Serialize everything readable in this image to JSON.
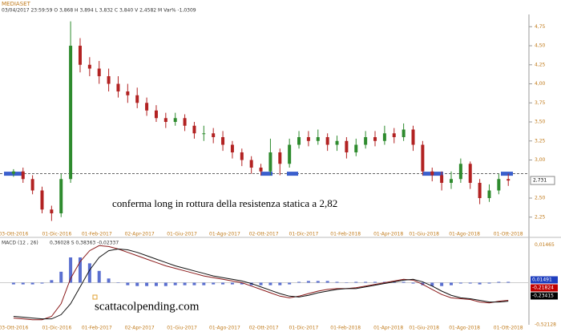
{
  "header": {
    "symbol": "MEDIASET",
    "readout": "03/04/2017  23:59:59  O 3,868  H 3,894  L 3,832  C 3,840  V 2,4582 M  Var% -1,0309",
    "watermark": "scattacolpending.com"
  },
  "chart_data": [
    {
      "type": "candlestick",
      "x": [
        0,
        2,
        4,
        6,
        8,
        10,
        12,
        14,
        16,
        18,
        20,
        22,
        24,
        26,
        28,
        30,
        32,
        34,
        36,
        38,
        40,
        42,
        44,
        46,
        48,
        50,
        52,
        54,
        56,
        58,
        60,
        62,
        64,
        66,
        68,
        70,
        72,
        74,
        76,
        78,
        80,
        82,
        84,
        86,
        88,
        90,
        92,
        94,
        96,
        98,
        100,
        102,
        104
      ],
      "open": [
        2.82,
        2.85,
        2.75,
        2.6,
        2.35,
        2.3,
        2.75,
        4.5,
        4.25,
        4.2,
        4.1,
        4.0,
        3.9,
        3.85,
        3.75,
        3.65,
        3.55,
        3.5,
        3.55,
        3.45,
        3.35,
        3.35,
        3.3,
        3.2,
        3.1,
        3.0,
        2.9,
        2.85,
        3.1,
        2.95,
        3.2,
        3.3,
        3.25,
        3.3,
        3.2,
        3.25,
        3.1,
        3.2,
        3.3,
        3.25,
        3.35,
        3.3,
        3.4,
        3.2,
        2.85,
        2.8,
        2.7,
        2.75,
        2.95,
        2.7,
        2.5,
        2.6,
        2.75
      ],
      "high": [
        2.88,
        2.9,
        2.8,
        2.65,
        2.4,
        2.82,
        4.82,
        4.6,
        4.35,
        4.3,
        4.2,
        4.1,
        4.0,
        3.95,
        3.82,
        3.72,
        3.62,
        3.62,
        3.6,
        3.5,
        3.45,
        3.42,
        3.38,
        3.25,
        3.15,
        3.05,
        2.95,
        3.28,
        3.15,
        3.28,
        3.38,
        3.38,
        3.4,
        3.35,
        3.32,
        3.3,
        3.28,
        3.38,
        3.38,
        3.45,
        3.42,
        3.48,
        3.45,
        3.25,
        2.9,
        2.85,
        2.85,
        3.02,
        2.98,
        2.75,
        2.68,
        2.82,
        2.82
      ],
      "low": [
        2.78,
        2.7,
        2.55,
        2.3,
        2.2,
        2.25,
        2.7,
        4.15,
        4.1,
        4.0,
        3.9,
        3.82,
        3.75,
        3.68,
        3.58,
        3.5,
        3.42,
        3.45,
        3.38,
        3.28,
        3.25,
        3.22,
        3.12,
        3.02,
        2.92,
        2.82,
        2.8,
        2.8,
        2.8,
        2.9,
        3.15,
        3.18,
        3.2,
        3.12,
        3.12,
        3.02,
        3.05,
        3.15,
        3.18,
        3.2,
        3.22,
        3.25,
        3.12,
        2.8,
        2.72,
        2.6,
        2.62,
        2.7,
        2.62,
        2.42,
        2.45,
        2.55,
        2.66
      ],
      "close": [
        2.85,
        2.75,
        2.6,
        2.35,
        2.3,
        2.75,
        4.5,
        4.25,
        4.2,
        4.1,
        4.0,
        3.9,
        3.85,
        3.75,
        3.65,
        3.55,
        3.5,
        3.55,
        3.45,
        3.35,
        3.35,
        3.3,
        3.2,
        3.1,
        3.0,
        2.9,
        2.85,
        3.1,
        2.95,
        3.2,
        3.3,
        3.25,
        3.3,
        3.2,
        3.25,
        3.1,
        3.2,
        3.3,
        3.25,
        3.35,
        3.3,
        3.4,
        3.2,
        2.85,
        2.8,
        2.7,
        2.75,
        2.95,
        2.7,
        2.5,
        2.6,
        2.75,
        2.73
      ],
      "up_color": "#2e8b2e",
      "down_color": "#b22222",
      "xlim": [
        -2,
        107.5
      ],
      "xticks": [
        {
          "value": 0,
          "label": "03-Ott-2016"
        },
        {
          "value": 9.1,
          "label": "01-Dic-2016"
        },
        {
          "value": 17.5,
          "label": "01-Feb-2017"
        },
        {
          "value": 26.5,
          "label": "02-Apr-2017"
        },
        {
          "value": 35.4,
          "label": "01-Giu-2017"
        },
        {
          "value": 44.4,
          "label": "01-Ago-2017"
        },
        {
          "value": 52.6,
          "label": "02-Ott-2017"
        },
        {
          "value": 61,
          "label": "01-Dic-2017"
        },
        {
          "value": 69.8,
          "label": "01-Feb-2018"
        },
        {
          "value": 78.8,
          "label": "01-Apr-2018"
        },
        {
          "value": 86.3,
          "label": "01-Giu-2018"
        },
        {
          "value": 94.8,
          "label": "01-Ago-2018"
        },
        {
          "value": 104,
          "label": "01-Ott-2018"
        }
      ],
      "ylim": [
        2.1,
        4.89
      ],
      "yticks": [
        {
          "value": 2.25,
          "label": "2,25"
        },
        {
          "value": 2.5,
          "label": "2,50"
        },
        {
          "value": 3,
          "label": "3,00"
        },
        {
          "value": 3.25,
          "label": "3,25"
        },
        {
          "value": 3.5,
          "label": "3,50"
        },
        {
          "value": 3.75,
          "label": "3,75"
        },
        {
          "value": 4,
          "label": "4,00"
        },
        {
          "value": 4.25,
          "label": "4,25"
        },
        {
          "value": 4.5,
          "label": "4,50"
        },
        {
          "value": 4.75,
          "label": "4,75"
        }
      ],
      "resistance": 2.82,
      "resistance_color": "#3a5fcd",
      "last_price": {
        "value": 2.731,
        "label": "2,731"
      },
      "annotations": [
        {
          "text": "conferma long in rottura della resistenza statica a 2,82"
        }
      ]
    },
    {
      "type": "line",
      "title": "MACD",
      "params": "(12 , 26)",
      "readout": "0,36028   S   0,38363   -0,02337",
      "x": [
        0,
        2,
        4,
        6,
        8,
        10,
        12,
        14,
        16,
        18,
        20,
        22,
        24,
        26,
        28,
        30,
        32,
        34,
        36,
        38,
        40,
        42,
        44,
        46,
        48,
        50,
        52,
        54,
        56,
        58,
        60,
        62,
        64,
        66,
        68,
        70,
        72,
        74,
        76,
        78,
        80,
        82,
        84,
        86,
        88,
        90,
        92,
        94,
        96,
        98,
        100,
        102,
        104
      ],
      "series": [
        {
          "color": "#8b1a1a",
          "values": [
            -0.42,
            -0.43,
            -0.44,
            -0.44,
            -0.4,
            -0.25,
            0.05,
            0.25,
            0.38,
            0.44,
            0.43,
            0.4,
            0.36,
            0.32,
            0.28,
            0.24,
            0.2,
            0.17,
            0.14,
            0.11,
            0.08,
            0.06,
            0.04,
            0.02,
            0,
            -0.04,
            -0.08,
            -0.12,
            -0.16,
            -0.18,
            -0.16,
            -0.13,
            -0.1,
            -0.08,
            -0.07,
            -0.07,
            -0.06,
            -0.04,
            -0.02,
            0,
            0.02,
            0.04,
            0.03,
            -0.02,
            -0.08,
            -0.14,
            -0.18,
            -0.19,
            -0.2,
            -0.23,
            -0.24,
            -0.22,
            -0.21
          ]
        },
        {
          "color": "#111111",
          "values": [
            -0.4,
            -0.41,
            -0.42,
            -0.43,
            -0.43,
            -0.38,
            -0.25,
            -0.05,
            0.15,
            0.3,
            0.38,
            0.4,
            0.39,
            0.36,
            0.32,
            0.28,
            0.24,
            0.2,
            0.17,
            0.14,
            0.11,
            0.08,
            0.06,
            0.04,
            0.02,
            -0.01,
            -0.05,
            -0.09,
            -0.13,
            -0.16,
            -0.17,
            -0.15,
            -0.12,
            -0.1,
            -0.08,
            -0.07,
            -0.07,
            -0.05,
            -0.03,
            -0.01,
            0.01,
            0.03,
            0.04,
            0.01,
            -0.04,
            -0.1,
            -0.15,
            -0.18,
            -0.19,
            -0.21,
            -0.23,
            -0.23,
            -0.22
          ]
        }
      ],
      "histogram": {
        "color": "#5a6fd0",
        "values": [
          -0.02,
          -0.02,
          -0.02,
          -0.01,
          0.03,
          0.13,
          0.3,
          0.3,
          0.23,
          0.14,
          0.05,
          0,
          -0.03,
          -0.04,
          -0.04,
          -0.04,
          -0.04,
          -0.03,
          -0.03,
          -0.03,
          -0.03,
          -0.02,
          -0.02,
          -0.02,
          -0.02,
          -0.03,
          -0.03,
          -0.03,
          -0.03,
          -0.02,
          0.01,
          0.02,
          0.02,
          0.02,
          0.01,
          0,
          0.01,
          0.01,
          0.01,
          0.01,
          0.01,
          0.01,
          -0.01,
          -0.03,
          -0.04,
          -0.04,
          -0.03,
          -0.01,
          -0.01,
          -0.02,
          -0.01,
          0.01,
          0.01
        ]
      },
      "xlim": [
        -2,
        107.5
      ],
      "ylim": [
        -0.5,
        0.5
      ],
      "axis_labels": [
        {
          "value": 0.45,
          "label": "0,01465"
        },
        {
          "value": -0.5,
          "label": "-0,52128"
        }
      ],
      "last_values": [
        {
          "label": "0,01491",
          "color": "#1f3fbf"
        },
        {
          "label": "-0,21824",
          "color": "#c00000"
        },
        {
          "label": "-0,23415",
          "color": "#000000"
        }
      ]
    }
  ]
}
